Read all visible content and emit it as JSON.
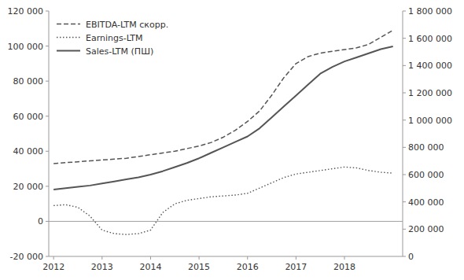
{
  "chart_data": {
    "type": "line",
    "x": [
      2012.0,
      2012.25,
      2012.5,
      2012.75,
      2013.0,
      2013.25,
      2013.5,
      2013.75,
      2014.0,
      2014.25,
      2014.5,
      2014.75,
      2015.0,
      2015.25,
      2015.5,
      2015.75,
      2016.0,
      2016.25,
      2016.5,
      2016.75,
      2017.0,
      2017.25,
      2017.5,
      2017.75,
      2018.0,
      2018.25,
      2018.5,
      2018.75,
      2019.0
    ],
    "series": [
      {
        "name": "EBITDA-LTM скорр.",
        "color": "#555555",
        "line_style": "dashed",
        "values": [
          33000,
          33500,
          34000,
          34500,
          35000,
          35500,
          36000,
          37000,
          38000,
          39000,
          40000,
          41500,
          43000,
          45000,
          48000,
          52000,
          57000,
          63000,
          72000,
          82000,
          90000,
          94000,
          96000,
          97000,
          98000,
          99000,
          101000,
          105000,
          109000
        ]
      },
      {
        "name": "Earnings-LTM",
        "color": "#555555",
        "line_style": "dotted",
        "values": [
          9000,
          9500,
          8000,
          3000,
          -5000,
          -7000,
          -7500,
          -7000,
          -5000,
          5000,
          10000,
          12000,
          13000,
          14000,
          14500,
          15000,
          16000,
          19000,
          22000,
          25000,
          27000,
          28000,
          29000,
          30000,
          31000,
          30500,
          29000,
          28000,
          27500
        ]
      },
      {
        "name": "Sales-LTM (ПШ)",
        "color": "#555555",
        "line_style": "solid",
        "axis": "y2",
        "values": [
          490000,
          500000,
          510000,
          520000,
          535000,
          550000,
          565000,
          580000,
          600000,
          625000,
          655000,
          685000,
          720000,
          760000,
          800000,
          840000,
          880000,
          940000,
          1020000,
          1100000,
          1180000,
          1260000,
          1340000,
          1390000,
          1430000,
          1460000,
          1490000,
          1520000,
          1540000
        ]
      }
    ],
    "xlim": [
      2011.9,
      2019.2
    ],
    "xticks": [
      2012,
      2013,
      2014,
      2015,
      2016,
      2017,
      2018
    ],
    "ylim": [
      -20000,
      120000
    ],
    "yticks": [
      {
        "value": -20000,
        "label": "-20 000"
      },
      0,
      {
        "value": 20000,
        "label": "20 000"
      },
      {
        "value": 40000,
        "label": "40 000"
      },
      {
        "value": 60000,
        "label": "60 000"
      },
      {
        "value": 80000,
        "label": "80 000"
      },
      {
        "value": 100000,
        "label": "100 000"
      },
      {
        "value": 120000,
        "label": "120 000"
      }
    ],
    "y2lim": [
      0,
      1800000
    ],
    "y2ticks": [
      0,
      {
        "value": 200000,
        "label": "200 000"
      },
      {
        "value": 400000,
        "label": "400 000"
      },
      {
        "value": 600000,
        "label": "600 000"
      },
      {
        "value": 800000,
        "label": "800 000"
      },
      {
        "value": 1000000,
        "label": "1 000 000"
      },
      {
        "value": 1200000,
        "label": "1 200 000"
      },
      {
        "value": 1400000,
        "label": "1 400 000"
      },
      {
        "value": 1600000,
        "label": "1 600 000"
      },
      {
        "value": 1800000,
        "label": "1 800 000"
      }
    ],
    "grid": false,
    "legend": "upper left"
  }
}
